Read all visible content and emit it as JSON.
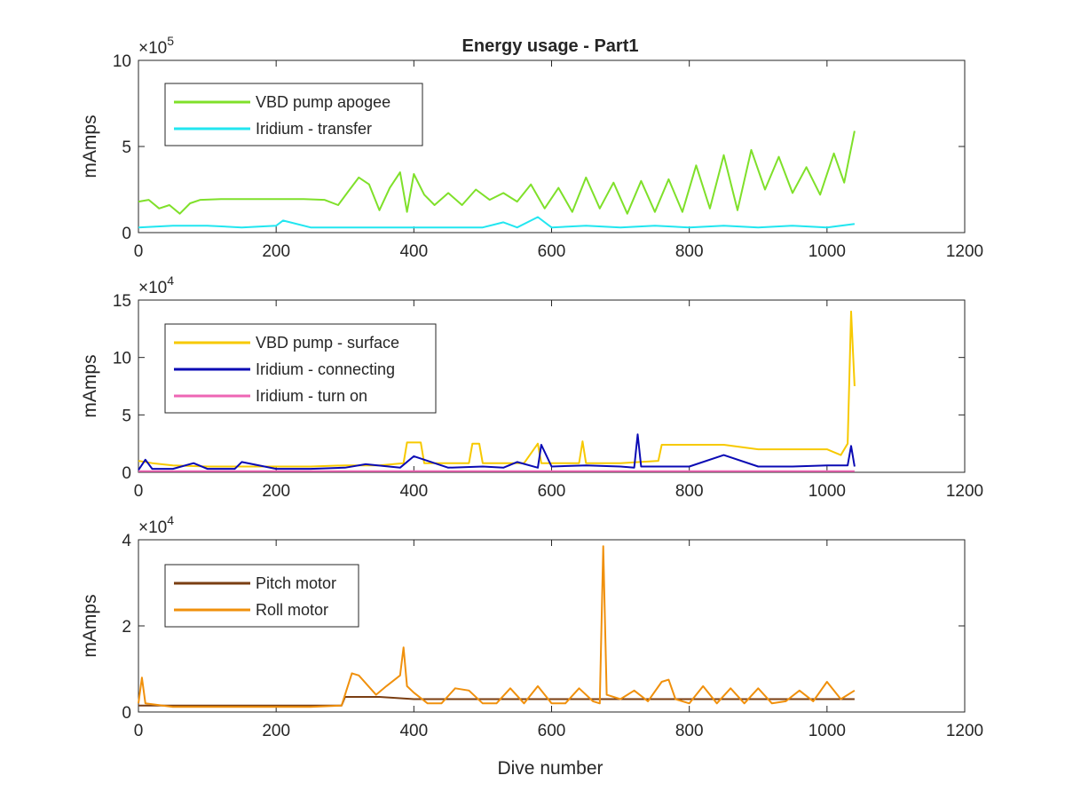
{
  "title": "Energy usage - Part1",
  "xlabel": "Dive number",
  "colors": {
    "vbd_apogee": "#7fe02a",
    "iridium_transfer": "#22e6f0",
    "vbd_surface": "#f7c900",
    "iridium_connecting": "#0a0ab4",
    "iridium_turn_on": "#ee66b4",
    "pitch_motor": "#7a3e12",
    "roll_motor": "#f0900c"
  },
  "chart_data": [
    {
      "type": "line",
      "title": "Energy usage - Part1",
      "xlabel": "",
      "ylabel": "mAmps",
      "exponent": "×10^5",
      "exp_base": "×10",
      "exp_power": "5",
      "xlim": [
        0,
        1200
      ],
      "ylim": [
        0,
        10
      ],
      "xticks": [
        0,
        200,
        400,
        600,
        800,
        1000,
        1200
      ],
      "yticks": [
        0,
        5,
        10
      ],
      "legend_position": "top-left",
      "series": [
        {
          "name": "VBD pump apogee",
          "color_key": "vbd_apogee",
          "x": [
            0,
            15,
            30,
            45,
            60,
            75,
            90,
            120,
            150,
            180,
            210,
            240,
            270,
            290,
            305,
            320,
            335,
            350,
            365,
            380,
            390,
            400,
            415,
            430,
            450,
            470,
            490,
            510,
            530,
            550,
            570,
            590,
            610,
            630,
            650,
            670,
            690,
            710,
            730,
            750,
            770,
            790,
            810,
            830,
            850,
            870,
            890,
            910,
            930,
            950,
            970,
            990,
            1010,
            1025,
            1040
          ],
          "values": [
            1.8,
            1.9,
            1.4,
            1.6,
            1.1,
            1.7,
            1.9,
            1.95,
            1.95,
            1.95,
            1.95,
            1.95,
            1.9,
            1.6,
            2.4,
            3.2,
            2.8,
            1.3,
            2.6,
            3.5,
            1.2,
            3.4,
            2.2,
            1.6,
            2.3,
            1.6,
            2.5,
            1.9,
            2.3,
            1.8,
            2.8,
            1.4,
            2.6,
            1.2,
            3.2,
            1.4,
            2.9,
            1.1,
            3.0,
            1.2,
            3.1,
            1.2,
            3.9,
            1.4,
            4.5,
            1.3,
            4.8,
            2.5,
            4.4,
            2.3,
            3.8,
            2.2,
            4.6,
            2.9,
            5.9
          ]
        },
        {
          "name": "Iridium - transfer",
          "color_key": "iridium_transfer",
          "x": [
            0,
            50,
            100,
            150,
            200,
            210,
            250,
            300,
            350,
            400,
            450,
            500,
            530,
            550,
            580,
            600,
            650,
            700,
            750,
            800,
            850,
            900,
            950,
            1000,
            1040
          ],
          "values": [
            0.3,
            0.4,
            0.4,
            0.3,
            0.4,
            0.7,
            0.3,
            0.3,
            0.3,
            0.3,
            0.3,
            0.3,
            0.6,
            0.3,
            0.9,
            0.3,
            0.4,
            0.3,
            0.4,
            0.3,
            0.4,
            0.3,
            0.4,
            0.3,
            0.5
          ]
        }
      ]
    },
    {
      "type": "line",
      "title": "",
      "xlabel": "",
      "ylabel": "mAmps",
      "exponent": "×10^4",
      "exp_base": "×10",
      "exp_power": "4",
      "xlim": [
        0,
        1200
      ],
      "ylim": [
        0,
        15
      ],
      "xticks": [
        0,
        200,
        400,
        600,
        800,
        1000,
        1200
      ],
      "yticks": [
        0,
        5,
        10,
        15
      ],
      "legend_position": "top-left",
      "series": [
        {
          "name": "VBD pump - surface",
          "color_key": "vbd_surface",
          "x": [
            0,
            20,
            50,
            100,
            150,
            200,
            250,
            300,
            350,
            385,
            390,
            410,
            415,
            480,
            485,
            495,
            500,
            560,
            580,
            585,
            600,
            640,
            645,
            650,
            700,
            755,
            760,
            800,
            850,
            900,
            950,
            1000,
            1020,
            1030,
            1035,
            1040
          ],
          "values": [
            1.0,
            0.8,
            0.6,
            0.5,
            0.5,
            0.5,
            0.5,
            0.6,
            0.6,
            0.8,
            2.6,
            2.6,
            0.8,
            0.8,
            2.5,
            2.5,
            0.8,
            0.8,
            2.5,
            0.8,
            0.8,
            0.8,
            2.7,
            0.8,
            0.8,
            1.0,
            2.4,
            2.4,
            2.4,
            2.0,
            2.0,
            2.0,
            1.5,
            2.5,
            14.0,
            7.5
          ]
        },
        {
          "name": "Iridium - connecting",
          "color_key": "iridium_connecting",
          "x": [
            0,
            10,
            20,
            50,
            80,
            100,
            140,
            150,
            200,
            250,
            300,
            330,
            380,
            400,
            450,
            500,
            530,
            550,
            580,
            585,
            600,
            650,
            700,
            720,
            725,
            730,
            800,
            850,
            900,
            950,
            1000,
            1030,
            1035,
            1040
          ],
          "values": [
            0.2,
            1.1,
            0.3,
            0.3,
            0.8,
            0.3,
            0.3,
            0.9,
            0.3,
            0.3,
            0.4,
            0.7,
            0.4,
            1.4,
            0.4,
            0.5,
            0.4,
            0.9,
            0.4,
            2.4,
            0.5,
            0.6,
            0.5,
            0.4,
            3.3,
            0.5,
            0.5,
            1.5,
            0.5,
            0.5,
            0.6,
            0.6,
            2.3,
            0.5
          ]
        },
        {
          "name": "Iridium - turn on",
          "color_key": "iridium_turn_on",
          "x": [
            0,
            200,
            400,
            600,
            800,
            1000,
            1040
          ],
          "values": [
            0.1,
            0.1,
            0.1,
            0.1,
            0.1,
            0.1,
            0.1
          ]
        }
      ]
    },
    {
      "type": "line",
      "title": "",
      "xlabel": "Dive number",
      "ylabel": "mAmps",
      "exponent": "×10^4",
      "exp_base": "×10",
      "exp_power": "4",
      "xlim": [
        0,
        1200
      ],
      "ylim": [
        0,
        4
      ],
      "xticks": [
        0,
        200,
        400,
        600,
        800,
        1000,
        1200
      ],
      "yticks": [
        0,
        2,
        4
      ],
      "legend_position": "top-left",
      "series": [
        {
          "name": "Pitch motor",
          "color_key": "pitch_motor",
          "x": [
            0,
            50,
            100,
            150,
            200,
            250,
            295,
            300,
            350,
            400,
            450,
            500,
            550,
            600,
            650,
            700,
            750,
            800,
            850,
            900,
            950,
            1000,
            1040
          ],
          "values": [
            0.15,
            0.15,
            0.15,
            0.15,
            0.15,
            0.15,
            0.15,
            0.35,
            0.35,
            0.3,
            0.3,
            0.3,
            0.3,
            0.3,
            0.3,
            0.3,
            0.3,
            0.3,
            0.3,
            0.3,
            0.3,
            0.3,
            0.3
          ]
        },
        {
          "name": "Roll motor",
          "color_key": "roll_motor",
          "x": [
            0,
            5,
            10,
            50,
            100,
            150,
            200,
            250,
            295,
            310,
            320,
            345,
            360,
            380,
            385,
            390,
            400,
            420,
            440,
            460,
            480,
            500,
            520,
            540,
            560,
            580,
            600,
            620,
            640,
            660,
            670,
            675,
            680,
            700,
            720,
            740,
            760,
            770,
            780,
            800,
            820,
            840,
            860,
            880,
            900,
            920,
            940,
            960,
            980,
            1000,
            1020,
            1040
          ],
          "values": [
            0.2,
            0.8,
            0.2,
            0.12,
            0.12,
            0.12,
            0.12,
            0.12,
            0.15,
            0.9,
            0.85,
            0.4,
            0.6,
            0.85,
            1.5,
            0.6,
            0.45,
            0.2,
            0.2,
            0.55,
            0.5,
            0.2,
            0.2,
            0.55,
            0.2,
            0.6,
            0.2,
            0.2,
            0.55,
            0.25,
            0.2,
            3.85,
            0.4,
            0.3,
            0.5,
            0.25,
            0.7,
            0.75,
            0.3,
            0.2,
            0.6,
            0.2,
            0.55,
            0.2,
            0.55,
            0.2,
            0.25,
            0.5,
            0.25,
            0.7,
            0.3,
            0.5
          ]
        }
      ]
    }
  ]
}
